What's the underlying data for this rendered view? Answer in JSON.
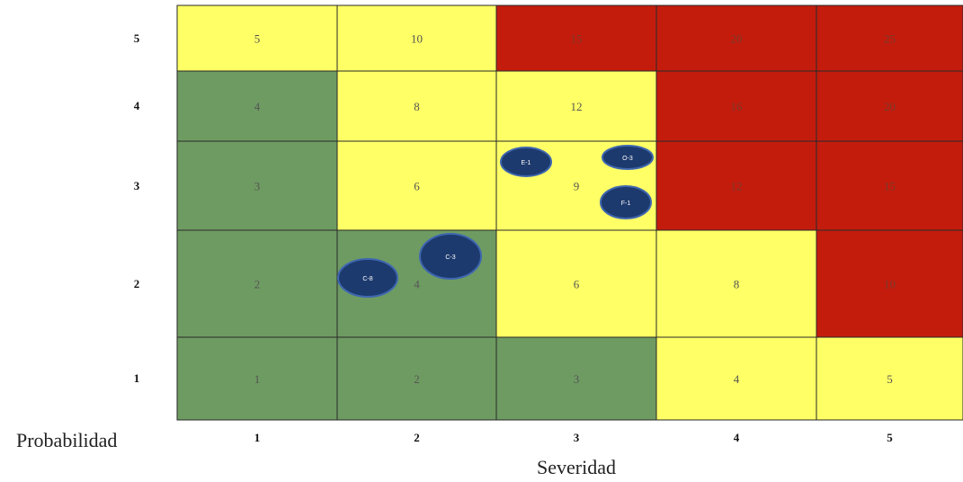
{
  "chart_data": {
    "type": "heatmap",
    "xlabel": "Severidad",
    "ylabel": "Probabilidad",
    "x_ticks": [
      "1",
      "2",
      "3",
      "4",
      "5"
    ],
    "y_ticks": [
      "5",
      "4",
      "3",
      "2",
      "1"
    ],
    "colors": {
      "green": "#6e9b62",
      "yellow": "#ffff66",
      "red": "#c31c0d"
    },
    "rows": [
      {
        "probability": 5,
        "cells": [
          {
            "value": "5",
            "zone": "yellow"
          },
          {
            "value": "10",
            "zone": "yellow"
          },
          {
            "value": "15",
            "zone": "red"
          },
          {
            "value": "20",
            "zone": "red"
          },
          {
            "value": "25",
            "zone": "red"
          }
        ]
      },
      {
        "probability": 4,
        "cells": [
          {
            "value": "4",
            "zone": "green"
          },
          {
            "value": "8",
            "zone": "yellow"
          },
          {
            "value": "12",
            "zone": "yellow"
          },
          {
            "value": "16",
            "zone": "red"
          },
          {
            "value": "20",
            "zone": "red"
          }
        ]
      },
      {
        "probability": 3,
        "cells": [
          {
            "value": "3",
            "zone": "green"
          },
          {
            "value": "6",
            "zone": "yellow"
          },
          {
            "value": "9",
            "zone": "yellow"
          },
          {
            "value": "12",
            "zone": "red"
          },
          {
            "value": "15",
            "zone": "red"
          }
        ]
      },
      {
        "probability": 2,
        "cells": [
          {
            "value": "2",
            "zone": "green"
          },
          {
            "value": "4",
            "zone": "green"
          },
          {
            "value": "6",
            "zone": "yellow"
          },
          {
            "value": "8",
            "zone": "yellow"
          },
          {
            "value": "10",
            "zone": "red"
          }
        ]
      },
      {
        "probability": 1,
        "cells": [
          {
            "value": "1",
            "zone": "green"
          },
          {
            "value": "2",
            "zone": "green"
          },
          {
            "value": "3",
            "zone": "green"
          },
          {
            "value": "4",
            "zone": "yellow"
          },
          {
            "value": "5",
            "zone": "yellow"
          }
        ]
      }
    ],
    "risks": [
      {
        "label": "E-1",
        "severity": 3,
        "probability": 3
      },
      {
        "label": "O-3",
        "severity": 3,
        "probability": 3
      },
      {
        "label": "F-1",
        "severity": 3,
        "probability": 3
      },
      {
        "label": "C-8",
        "severity": 2,
        "probability": 2
      },
      {
        "label": "C-3",
        "severity": 2,
        "probability": 2
      }
    ],
    "marker_color": "#1d3a6e"
  }
}
